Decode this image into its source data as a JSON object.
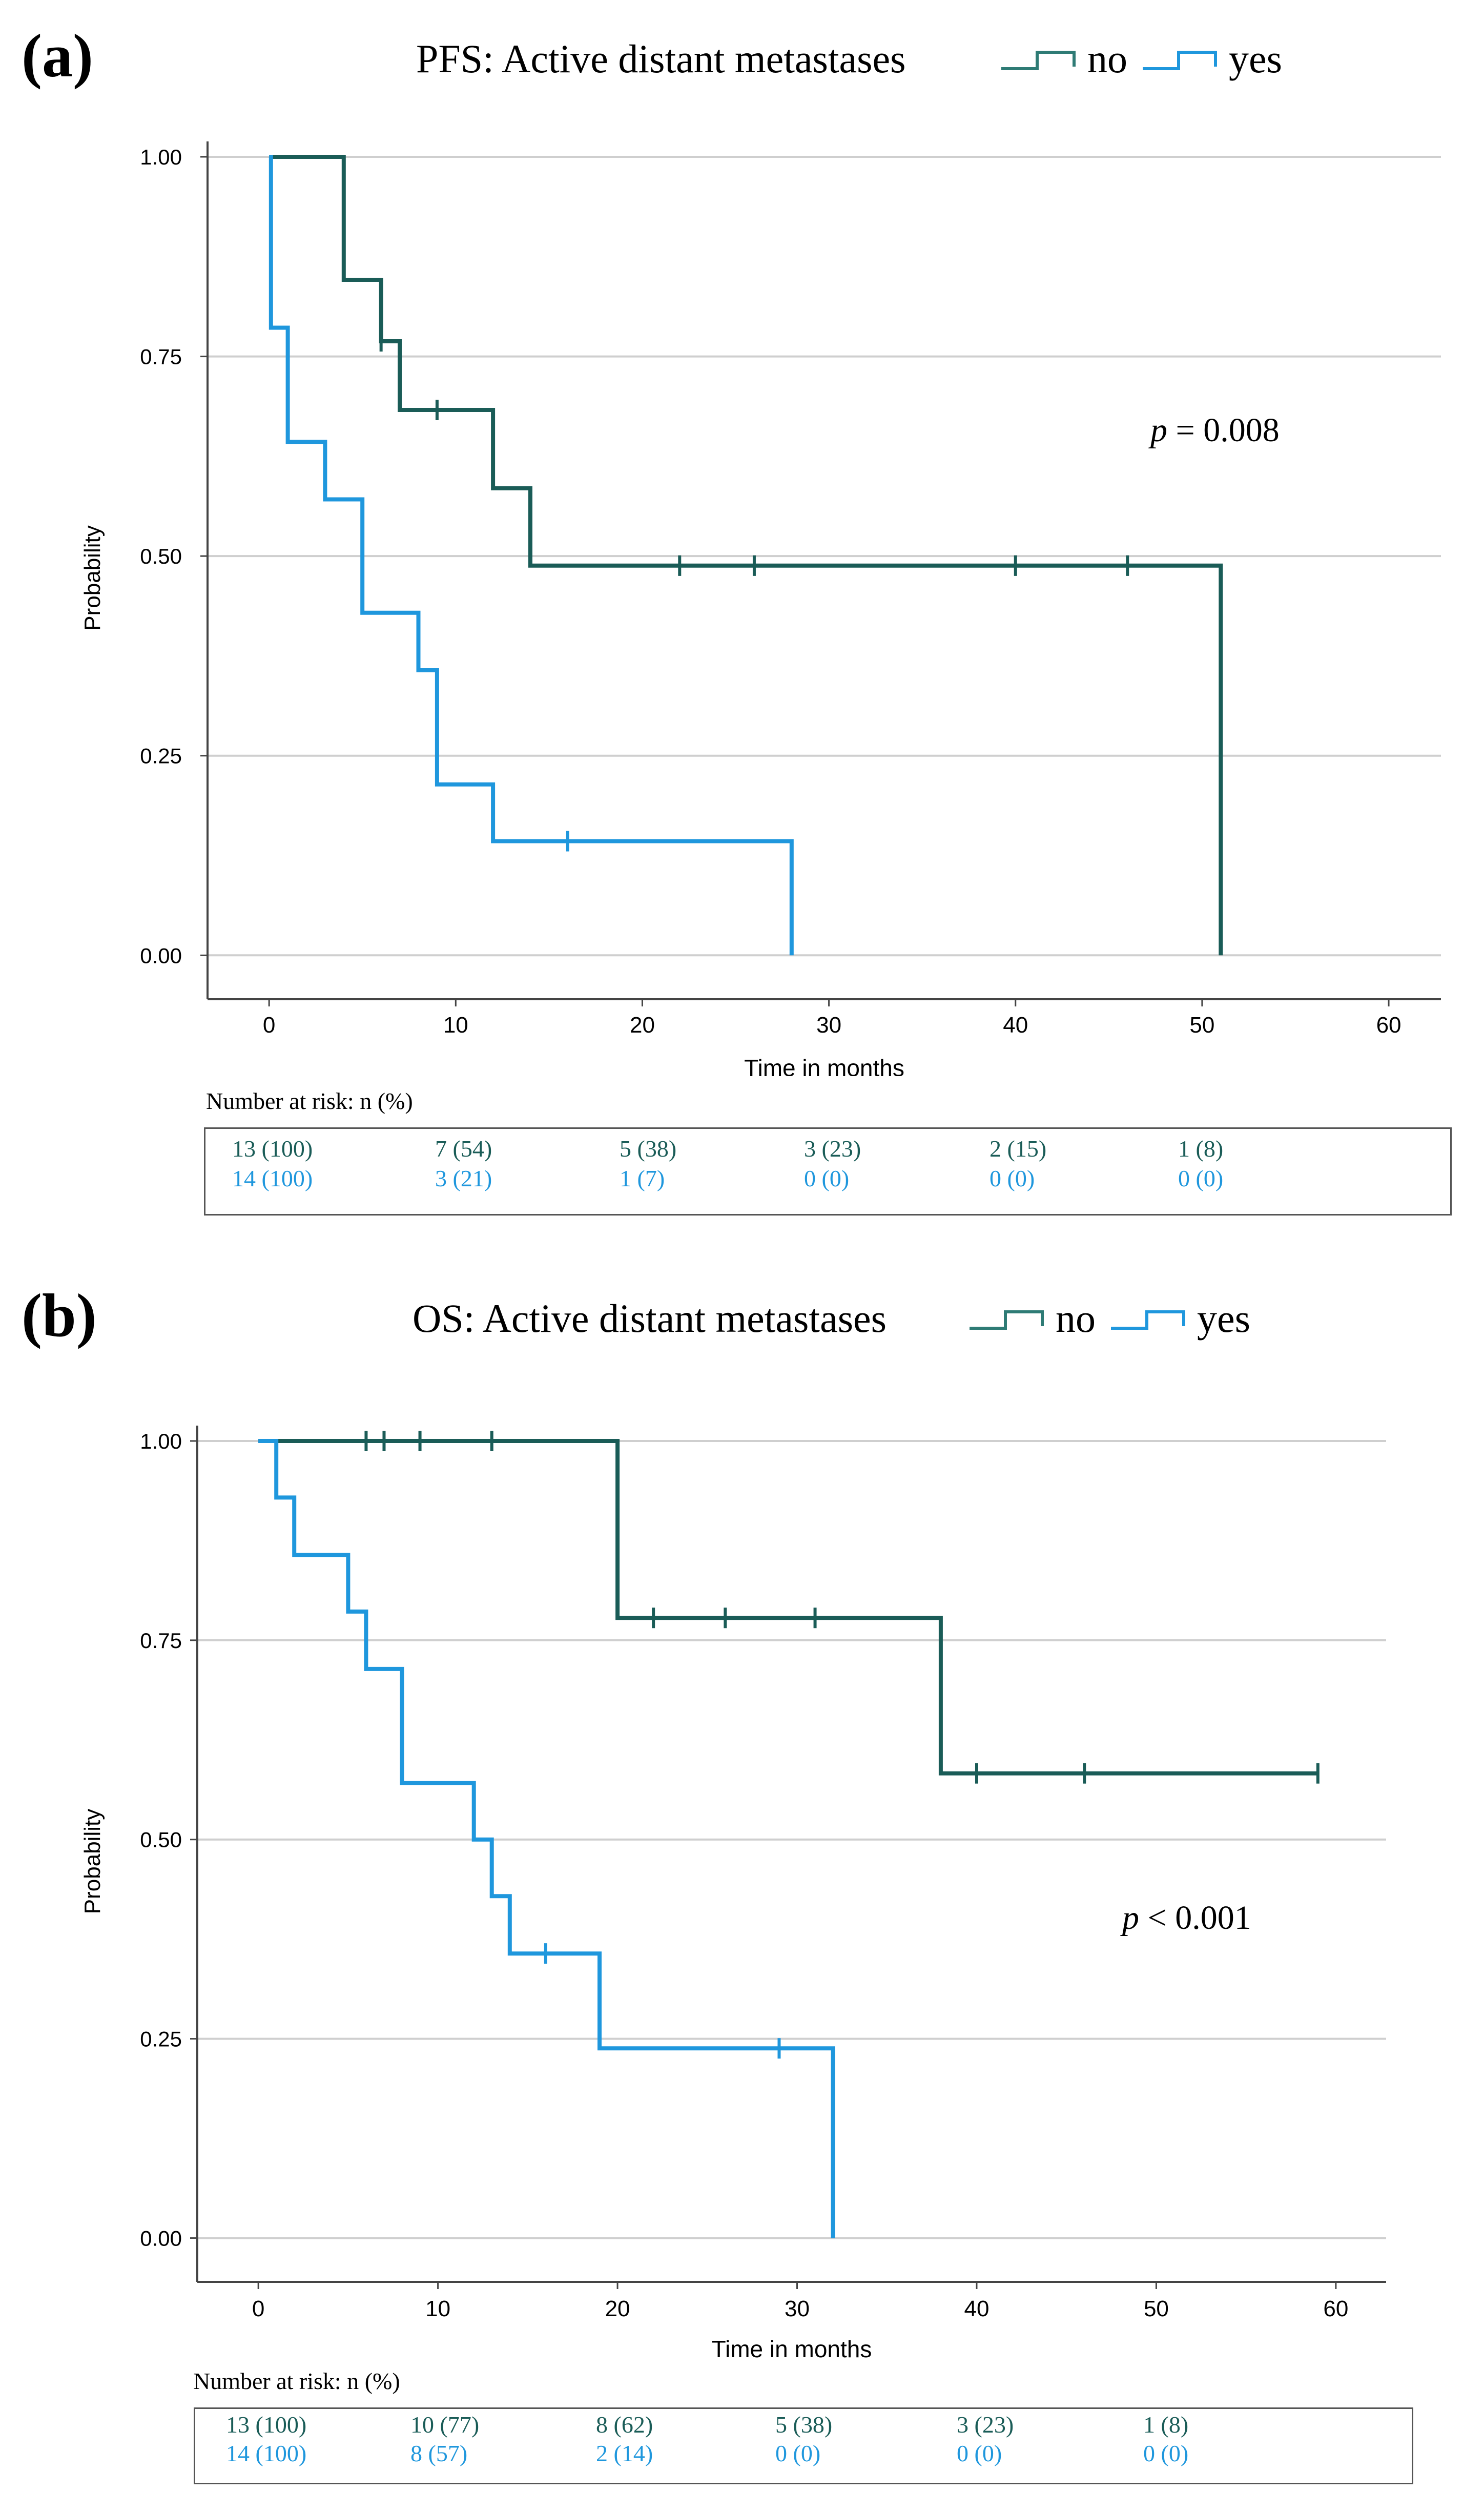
{
  "colors": {
    "no": "#1a5c57",
    "yes": "#1f97dd",
    "grid": "#cfcfcf",
    "axis": "#444444"
  },
  "risk_header": "Number at risk: n (%)",
  "chart_data": [
    {
      "type": "line",
      "id": "a",
      "panel_label": "(a)",
      "title": "PFS: Active distant metastases",
      "legend": [
        "no",
        "yes"
      ],
      "xlabel": "Time in months",
      "ylabel": "Probability",
      "xlim": [
        -3.3,
        62.8
      ],
      "ylim": [
        -0.055,
        1.0
      ],
      "xticks": [
        0,
        10,
        20,
        30,
        40,
        50,
        60
      ],
      "yticks": [
        0,
        0.25,
        0.5,
        0.75,
        1.0
      ],
      "ytick_labels": [
        "0.00",
        "0.25",
        "0.50",
        "0.75",
        "1.00"
      ],
      "grid": true,
      "p_prefix": "p",
      "p_text": " = 0.008",
      "series": [
        {
          "name": "no",
          "steps": [
            [
              0,
              1.0
            ],
            [
              4,
              0.846
            ],
            [
              6,
              0.769
            ],
            [
              7,
              0.683
            ],
            [
              12,
              0.585
            ],
            [
              14,
              0.488
            ],
            [
              51,
              0.0
            ]
          ],
          "end": 51,
          "censored": [
            [
              6,
              0.769
            ],
            [
              9,
              0.683
            ],
            [
              22,
              0.488
            ],
            [
              26,
              0.488
            ],
            [
              40,
              0.488
            ],
            [
              46,
              0.488
            ]
          ]
        },
        {
          "name": "yes",
          "steps": [
            [
              0,
              1.0
            ],
            [
              0.1,
              0.786
            ],
            [
              1,
              0.643
            ],
            [
              3,
              0.571
            ],
            [
              5,
              0.429
            ],
            [
              8,
              0.357
            ],
            [
              9,
              0.214
            ],
            [
              12,
              0.143
            ],
            [
              28,
              0.0
            ]
          ],
          "end": 28,
          "censored": [
            [
              16,
              0.143
            ]
          ]
        }
      ],
      "risk_table": {
        "no": [
          "13 (100)",
          "7 (54)",
          "5 (38)",
          "3 (23)",
          "2 (15)",
          "1 (8)"
        ],
        "yes": [
          "14 (100)",
          "3 (21)",
          "1 (7)",
          "0 (0)",
          "0 (0)",
          "0 (0)"
        ]
      }
    },
    {
      "type": "line",
      "id": "b",
      "panel_label": "(b)",
      "title": "OS: Active distant metastases",
      "legend": [
        "no",
        "yes"
      ],
      "xlabel": "Time in months",
      "ylabel": "Probability",
      "xlim": [
        -3.4,
        62.8
      ],
      "ylim": [
        -0.055,
        1.0
      ],
      "xticks": [
        0,
        10,
        20,
        30,
        40,
        50,
        60
      ],
      "yticks": [
        0,
        0.25,
        0.5,
        0.75,
        1.0
      ],
      "ytick_labels": [
        "0.00",
        "0.25",
        "0.50",
        "0.75",
        "1.00"
      ],
      "grid": true,
      "p_prefix": "p",
      "p_text": " < 0.001",
      "series": [
        {
          "name": "no",
          "steps": [
            [
              0,
              1.0
            ],
            [
              20,
              0.778
            ],
            [
              38,
              0.583
            ]
          ],
          "end": 59,
          "censored": [
            [
              6,
              1.0
            ],
            [
              7,
              1.0
            ],
            [
              9,
              1.0
            ],
            [
              13,
              1.0
            ],
            [
              22,
              0.778
            ],
            [
              26,
              0.778
            ],
            [
              31,
              0.778
            ],
            [
              40,
              0.583
            ],
            [
              46,
              0.583
            ],
            [
              59,
              0.583
            ]
          ]
        },
        {
          "name": "yes",
          "steps": [
            [
              0,
              1.0
            ],
            [
              1,
              0.929
            ],
            [
              2,
              0.857
            ],
            [
              5,
              0.786
            ],
            [
              6,
              0.714
            ],
            [
              8,
              0.571
            ],
            [
              12,
              0.5
            ],
            [
              13,
              0.429
            ],
            [
              14,
              0.357
            ],
            [
              19,
              0.238
            ],
            [
              32,
              0.0
            ]
          ],
          "end": 32,
          "censored": [
            [
              16,
              0.357
            ],
            [
              29,
              0.238
            ]
          ]
        }
      ],
      "risk_table": {
        "no": [
          "13 (100)",
          "10 (77)",
          "8 (62)",
          "5 (38)",
          "3 (23)",
          "1 (8)"
        ],
        "yes": [
          "14 (100)",
          "8 (57)",
          "2 (14)",
          "0 (0)",
          "0 (0)",
          "0 (0)"
        ]
      }
    }
  ]
}
